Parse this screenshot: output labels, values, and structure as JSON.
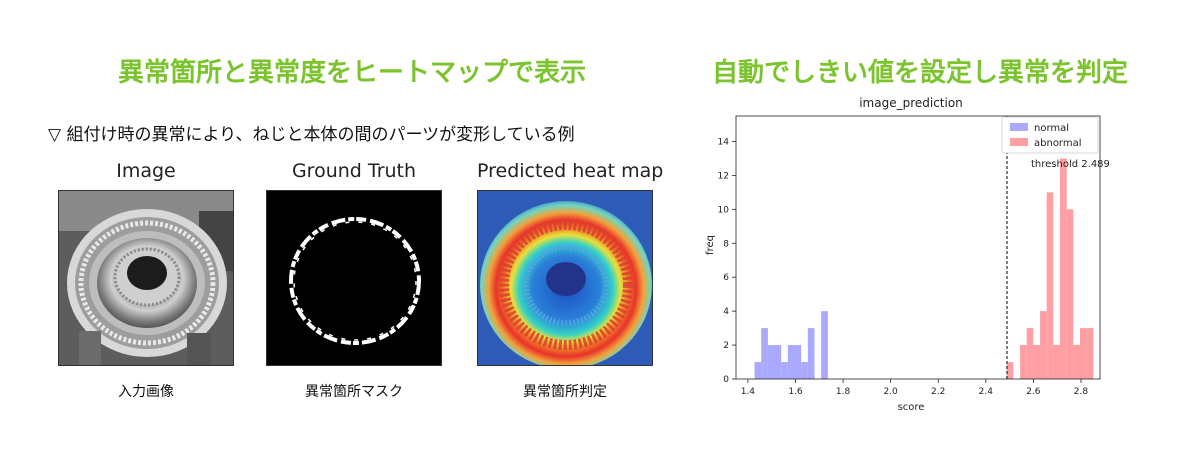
{
  "headings": {
    "left": "異常箇所と異常度をヒートマップで表示",
    "right": "自動でしきい値を設定し異常を判定"
  },
  "subcaption": "▽ 組付け時の異常により、ねじと本体の間のパーツが変形している例",
  "panels": [
    {
      "title": "Image",
      "caption": "入力画像"
    },
    {
      "title": "Ground Truth",
      "caption": "異常箇所マスク"
    },
    {
      "title": "Predicted heat map",
      "caption": "異常箇所判定"
    }
  ],
  "colors": {
    "heading": "#7cc42e",
    "normal": "#a9a9ff",
    "abnormal": "#ff9ea3",
    "threshold": "#000000"
  },
  "chart_data": {
    "type": "bar",
    "title": "image_prediction",
    "xlabel": "score",
    "ylabel": "freq",
    "xlim": [
      1.35,
      2.88
    ],
    "ylim": [
      0,
      15.5
    ],
    "xticks": [
      1.4,
      1.6,
      1.8,
      2.0,
      2.2,
      2.4,
      2.6,
      2.8
    ],
    "yticks": [
      0,
      2,
      4,
      6,
      8,
      10,
      12,
      14
    ],
    "bin_width": 0.028,
    "legend": {
      "position": "top-right",
      "entries": [
        "normal",
        "abnormal"
      ]
    },
    "threshold": {
      "value": 2.489,
      "label": "threshold  2.489"
    },
    "series": [
      {
        "name": "normal",
        "color": "#a9a9ff",
        "bins": [
          {
            "x": 1.428,
            "y": 1
          },
          {
            "x": 1.456,
            "y": 3
          },
          {
            "x": 1.484,
            "y": 2
          },
          {
            "x": 1.512,
            "y": 2
          },
          {
            "x": 1.54,
            "y": 1
          },
          {
            "x": 1.568,
            "y": 2
          },
          {
            "x": 1.596,
            "y": 2
          },
          {
            "x": 1.624,
            "y": 1
          },
          {
            "x": 1.652,
            "y": 3
          },
          {
            "x": 1.708,
            "y": 4
          }
        ]
      },
      {
        "name": "abnormal",
        "color": "#ff9ea3",
        "bins": [
          {
            "x": 2.488,
            "y": 1
          },
          {
            "x": 2.544,
            "y": 2
          },
          {
            "x": 2.572,
            "y": 3
          },
          {
            "x": 2.6,
            "y": 2
          },
          {
            "x": 2.628,
            "y": 4
          },
          {
            "x": 2.656,
            "y": 11
          },
          {
            "x": 2.684,
            "y": 2
          },
          {
            "x": 2.712,
            "y": 13
          },
          {
            "x": 2.74,
            "y": 10
          },
          {
            "x": 2.768,
            "y": 2
          },
          {
            "x": 2.796,
            "y": 3
          },
          {
            "x": 2.824,
            "y": 3
          }
        ]
      }
    ]
  }
}
